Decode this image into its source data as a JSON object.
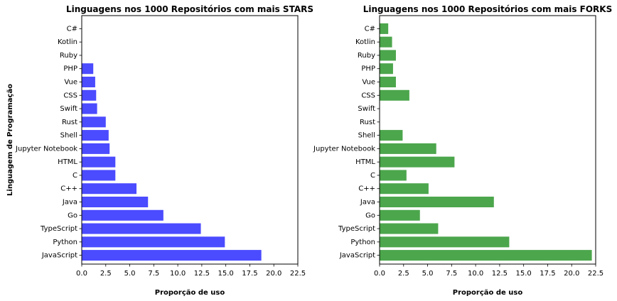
{
  "chart_data": [
    {
      "type": "bar",
      "orientation": "horizontal",
      "title": "Linguagens nos 1000 Repositórios com mais STARS",
      "xlabel": "Proporção de uso",
      "ylabel": "Linguagem de Programação",
      "xlim": [
        0,
        22.5
      ],
      "xticks": [
        "0.0",
        "2.5",
        "5.0",
        "7.5",
        "10.0",
        "12.5",
        "15.0",
        "17.5",
        "20.0",
        "22.5"
      ],
      "color": "#4B4BFF",
      "categories": [
        "JavaScript",
        "Python",
        "TypeScript",
        "Go",
        "Java",
        "C++",
        "C",
        "HTML",
        "Jupyter Notebook",
        "Shell",
        "Rust",
        "Swift",
        "CSS",
        "Vue",
        "PHP",
        "Ruby",
        "Kotlin",
        "C#"
      ],
      "values": [
        18.7,
        14.9,
        12.4,
        8.5,
        6.9,
        5.7,
        3.5,
        3.5,
        2.9,
        2.8,
        2.5,
        1.6,
        1.5,
        1.4,
        1.2,
        0,
        0,
        0
      ],
      "grid": false
    },
    {
      "type": "bar",
      "orientation": "horizontal",
      "title": "Linguagens nos 1000 Repositórios com mais FORKS",
      "xlabel": "Proporção de uso",
      "ylabel": "",
      "xlim": [
        0,
        22.5
      ],
      "xticks": [
        "0.0",
        "2.5",
        "5.0",
        "7.5",
        "10.0",
        "12.5",
        "15.0",
        "17.5",
        "20.0",
        "22.5"
      ],
      "color": "#4CA64C",
      "categories": [
        "JavaScript",
        "Python",
        "TypeScript",
        "Go",
        "Java",
        "C++",
        "C",
        "HTML",
        "Jupyter Notebook",
        "Shell",
        "Rust",
        "Swift",
        "CSS",
        "Vue",
        "PHP",
        "Ruby",
        "Kotlin",
        "C#"
      ],
      "values": [
        22.1,
        13.5,
        6.1,
        4.2,
        11.9,
        5.1,
        2.8,
        7.8,
        5.9,
        2.4,
        0,
        0,
        3.1,
        1.7,
        1.4,
        1.7,
        1.3,
        0.9
      ],
      "grid": false
    }
  ]
}
